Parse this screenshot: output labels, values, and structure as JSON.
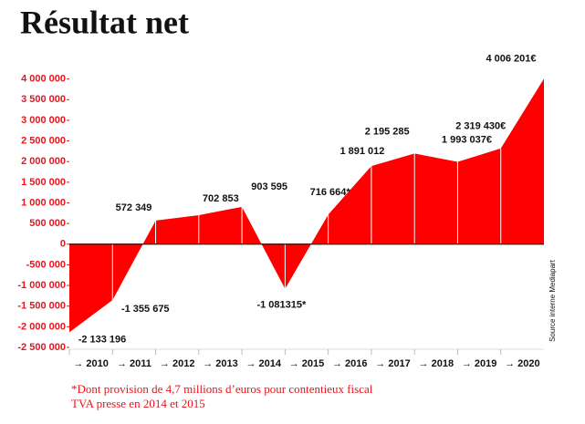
{
  "chart_data": {
    "type": "area",
    "title": "Résultat net",
    "categories": [
      "→ 2010",
      "→ 2011",
      "→ 2012",
      "→ 2013",
      "→ 2014",
      "→ 2015",
      "→ 2016",
      "→ 2017",
      "→ 2018",
      "→ 2019",
      "→ 2020",
      null
    ],
    "values": [
      -2133196,
      -1355675,
      572349,
      702853,
      903595,
      -1081315,
      716664,
      1891012,
      2195285,
      1993037,
      2319430,
      4006201
    ],
    "value_labels": [
      "-2 133 196",
      "-1 355 675",
      "572 349",
      "702 853",
      "903 595",
      "-1 081315*",
      "716 664*",
      "1 891 012",
      "2 195 285",
      "1 993 037€",
      "2 319 430€",
      "4 006 201€"
    ],
    "color": "#ff0000",
    "ylim": [
      -2500000,
      4500000
    ],
    "yticks": [
      {
        "value": -2500000,
        "label": "-2 500 000"
      },
      {
        "value": -2000000,
        "label": "-2 000 000"
      },
      {
        "value": -1500000,
        "label": "-1 500 000"
      },
      {
        "value": -1000000,
        "label": "-1 000 000"
      },
      {
        "value": -500000,
        "label": "-500 000"
      },
      0,
      {
        "value": 500000,
        "label": "500 000"
      },
      {
        "value": 1000000,
        "label": "1 000 000"
      },
      {
        "value": 1500000,
        "label": "1 500 000"
      },
      {
        "value": 2000000,
        "label": "2 000 000"
      },
      {
        "value": 2500000,
        "label": "2 500 000"
      },
      {
        "value": 3000000,
        "label": "3 000 000"
      },
      {
        "value": 3500000,
        "label": "3 500 000"
      },
      {
        "value": 4000000,
        "label": "4 000 000"
      }
    ],
    "source": "Source interne Mediapart",
    "footnote": [
      "*Dont provision de 4,7 millions d’euros pour contentieux fiscal",
      "TVA presse en 2014 et 2015"
    ]
  }
}
